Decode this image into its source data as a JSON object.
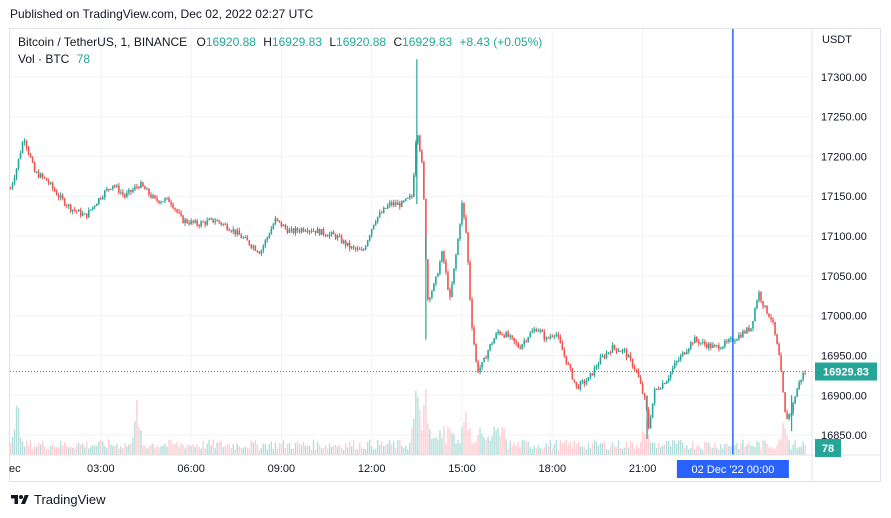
{
  "header": {
    "published": "Published on TradingView.com, Dec 02, 2022 02:27 UTC"
  },
  "legend": {
    "symbol": "Bitcoin / TetherUS, 1, BINANCE",
    "open_label": "O",
    "open": "16920.88",
    "high_label": "H",
    "high": "16929.83",
    "low_label": "L",
    "low": "16920.88",
    "close_label": "C",
    "close": "16929.83",
    "change": "+8.43 (+0.05%)",
    "volume_label": "Vol · BTC",
    "volume": "78"
  },
  "currency": "USDT",
  "footer": {
    "brand": "TradingView"
  },
  "colors": {
    "up": "#26a69a",
    "down": "#ef5350",
    "crosshair": "#2962ff",
    "grid": "#f0f3fa",
    "vol_up": "#b2dfdb",
    "vol_down": "#ffcdd2"
  },
  "chart_data": {
    "type": "candlestick",
    "price_axis": {
      "ylim": [
        16825,
        17360
      ],
      "ticks": [
        "17300.00",
        "17250.00",
        "17200.00",
        "17150.00",
        "17100.00",
        "17050.00",
        "17000.00",
        "16950.00",
        "16900.00",
        "16850.00"
      ],
      "tick_values": [
        17300,
        17250,
        17200,
        17150,
        17100,
        17050,
        17000,
        16950,
        16900,
        16850
      ],
      "last_price_label": "16929.83",
      "last_price": 16929.83,
      "volume_label": "78"
    },
    "time_axis": {
      "ticks": [
        "ec",
        "03:00",
        "06:00",
        "09:00",
        "12:00",
        "15:00",
        "18:00",
        "21:00",
        "00:00"
      ],
      "tick_hours": [
        0,
        3,
        6,
        9,
        12,
        15,
        18,
        21,
        24
      ],
      "crosshair_label": "02 Dec '22   00:00",
      "crosshair_hour": 24
    },
    "close_path": [
      [
        0.0,
        17160
      ],
      [
        0.2,
        17185
      ],
      [
        0.45,
        17225
      ],
      [
        0.8,
        17180
      ],
      [
        1.2,
        17170
      ],
      [
        1.6,
        17150
      ],
      [
        2.0,
        17135
      ],
      [
        2.5,
        17125
      ],
      [
        3.0,
        17150
      ],
      [
        3.4,
        17165
      ],
      [
        3.8,
        17150
      ],
      [
        4.3,
        17165
      ],
      [
        4.8,
        17145
      ],
      [
        5.3,
        17145
      ],
      [
        5.7,
        17120
      ],
      [
        6.2,
        17115
      ],
      [
        6.8,
        17120
      ],
      [
        7.3,
        17110
      ],
      [
        7.8,
        17095
      ],
      [
        8.3,
        17080
      ],
      [
        8.8,
        17120
      ],
      [
        9.3,
        17105
      ],
      [
        9.8,
        17110
      ],
      [
        10.3,
        17105
      ],
      [
        10.8,
        17100
      ],
      [
        11.3,
        17085
      ],
      [
        11.7,
        17080
      ],
      [
        12.1,
        17120
      ],
      [
        12.6,
        17140
      ],
      [
        13.0,
        17140
      ],
      [
        13.35,
        17150
      ],
      [
        13.5,
        17240
      ],
      [
        13.7,
        17180
      ],
      [
        13.85,
        17020
      ],
      [
        14.1,
        17040
      ],
      [
        14.35,
        17080
      ],
      [
        14.6,
        17020
      ],
      [
        14.85,
        17090
      ],
      [
        15.0,
        17140
      ],
      [
        15.15,
        17100
      ],
      [
        15.3,
        17000
      ],
      [
        15.5,
        16930
      ],
      [
        15.7,
        16940
      ],
      [
        15.9,
        16960
      ],
      [
        16.2,
        16980
      ],
      [
        16.5,
        16975
      ],
      [
        16.9,
        16960
      ],
      [
        17.2,
        16975
      ],
      [
        17.5,
        16985
      ],
      [
        17.8,
        16970
      ],
      [
        18.1,
        16980
      ],
      [
        18.4,
        16950
      ],
      [
        18.8,
        16910
      ],
      [
        19.2,
        16920
      ],
      [
        19.6,
        16945
      ],
      [
        20.0,
        16960
      ],
      [
        20.4,
        16955
      ],
      [
        20.8,
        16930
      ],
      [
        21.1,
        16890
      ],
      [
        21.2,
        16860
      ],
      [
        21.4,
        16905
      ],
      [
        21.8,
        16920
      ],
      [
        22.1,
        16940
      ],
      [
        22.4,
        16955
      ],
      [
        22.7,
        16970
      ],
      [
        23.0,
        16965
      ],
      [
        23.4,
        16960
      ],
      [
        23.8,
        16965
      ],
      [
        24.2,
        16975
      ],
      [
        24.6,
        16985
      ],
      [
        24.85,
        17030
      ],
      [
        25.05,
        17010
      ],
      [
        25.3,
        16995
      ],
      [
        25.55,
        16945
      ],
      [
        25.75,
        16870
      ],
      [
        25.95,
        16880
      ],
      [
        26.1,
        16905
      ],
      [
        26.3,
        16925
      ],
      [
        26.45,
        16930
      ]
    ],
    "spikes": [
      {
        "hour": 13.5,
        "high": 17322,
        "low": 17140
      },
      {
        "hour": 13.8,
        "high": 17100,
        "low": 16970
      },
      {
        "hour": 21.15,
        "high": 16900,
        "low": 16845
      },
      {
        "hour": 25.95,
        "high": 16900,
        "low": 16855
      }
    ],
    "volume": {
      "volume_peaks": [
        {
          "hour": 0.2,
          "rel": 0.8
        },
        {
          "hour": 4.2,
          "rel": 0.75
        },
        {
          "hour": 13.5,
          "rel": 1.0
        },
        {
          "hour": 13.8,
          "rel": 0.85
        },
        {
          "hour": 15.1,
          "rel": 0.65
        },
        {
          "hour": 21.1,
          "rel": 0.5
        },
        {
          "hour": 25.7,
          "rel": 0.6
        }
      ]
    }
  }
}
